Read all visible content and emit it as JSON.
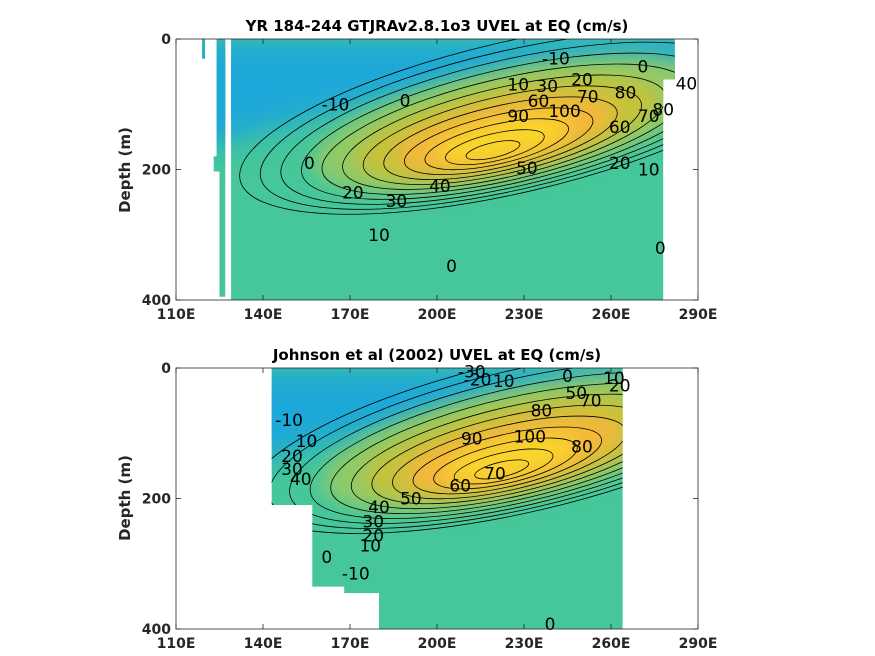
{
  "figure_colors": {
    "axes": "#262626",
    "contour": "#000000",
    "background": "#ffffff"
  },
  "colormap": [
    "#3a8ee0",
    "#1aa8d8",
    "#1fbfb0",
    "#45c79a",
    "#8fca68",
    "#c5c23a",
    "#f4b83a",
    "#f9d52c",
    "#f9f51a"
  ],
  "clim": [
    -40,
    110
  ],
  "chart_data": [
    {
      "type": "heatmap",
      "subtype": "filled contour",
      "title": "YR 184-244 GTJRAv2.8.1o3 UVEL at EQ (cm/s)",
      "ylabel": "Depth (m)",
      "xlabel": "",
      "xlim": [
        110,
        290
      ],
      "ylim": [
        400,
        0
      ],
      "x_ticks": [
        "110E",
        "140E",
        "170E",
        "200E",
        "230E",
        "260E",
        "290E"
      ],
      "y_ticks": [
        "0",
        "200",
        "400"
      ],
      "undercurrent_core": {
        "longitude": 225,
        "depth": 130,
        "max_speed": 100
      },
      "contour_labels": [
        {
          "text": "-10",
          "lon": 241,
          "depth": 30
        },
        {
          "text": "0",
          "lon": 271,
          "depth": 42
        },
        {
          "text": "10",
          "lon": 228,
          "depth": 70
        },
        {
          "text": "30",
          "lon": 238,
          "depth": 72
        },
        {
          "text": "20",
          "lon": 250,
          "depth": 62
        },
        {
          "text": "40",
          "lon": 286,
          "depth": 68
        },
        {
          "text": "60",
          "lon": 235,
          "depth": 95
        },
        {
          "text": "70",
          "lon": 252,
          "depth": 88
        },
        {
          "text": "80",
          "lon": 265,
          "depth": 82
        },
        {
          "text": "90",
          "lon": 228,
          "depth": 118
        },
        {
          "text": "100",
          "lon": 244,
          "depth": 110
        },
        {
          "text": "80",
          "lon": 278,
          "depth": 108
        },
        {
          "text": "70",
          "lon": 273,
          "depth": 118
        },
        {
          "text": "60",
          "lon": 263,
          "depth": 135
        },
        {
          "text": "30",
          "lon": 300,
          "depth": 88
        },
        {
          "text": "-10",
          "lon": 165,
          "depth": 100
        },
        {
          "text": "0",
          "lon": 189,
          "depth": 94
        },
        {
          "text": "0",
          "lon": 156,
          "depth": 190
        },
        {
          "text": "50",
          "lon": 231,
          "depth": 198
        },
        {
          "text": "40",
          "lon": 201,
          "depth": 225
        },
        {
          "text": "30",
          "lon": 186,
          "depth": 248
        },
        {
          "text": "20",
          "lon": 171,
          "depth": 235
        },
        {
          "text": "20",
          "lon": 263,
          "depth": 190
        },
        {
          "text": "10",
          "lon": 273,
          "depth": 200
        },
        {
          "text": "10",
          "lon": 180,
          "depth": 300
        },
        {
          "text": "0",
          "lon": 205,
          "depth": 348
        },
        {
          "text": "0",
          "lon": 277,
          "depth": 320
        }
      ]
    },
    {
      "type": "heatmap",
      "subtype": "filled contour",
      "title": "Johnson et al (2002) UVEL at EQ (cm/s)",
      "ylabel": "Depth (m)",
      "xlabel": "",
      "xlim": [
        110,
        290
      ],
      "ylim": [
        400,
        0
      ],
      "x_ticks": [
        "110E",
        "140E",
        "170E",
        "200E",
        "230E",
        "260E",
        "290E"
      ],
      "y_ticks": [
        "0",
        "200",
        "400"
      ],
      "undercurrent_core": {
        "longitude": 228,
        "depth": 115,
        "max_speed": 100
      },
      "contour_labels": [
        {
          "text": "-30",
          "lon": 212,
          "depth": 5
        },
        {
          "text": "-20",
          "lon": 214,
          "depth": 18
        },
        {
          "text": "10",
          "lon": 223,
          "depth": 20
        },
        {
          "text": "0",
          "lon": 245,
          "depth": 12
        },
        {
          "text": "10",
          "lon": 261,
          "depth": 15
        },
        {
          "text": "20",
          "lon": 263,
          "depth": 27
        },
        {
          "text": "50",
          "lon": 248,
          "depth": 38
        },
        {
          "text": "70",
          "lon": 253,
          "depth": 50
        },
        {
          "text": "80",
          "lon": 236,
          "depth": 65
        },
        {
          "text": "90",
          "lon": 212,
          "depth": 108
        },
        {
          "text": "100",
          "lon": 232,
          "depth": 105
        },
        {
          "text": "80",
          "lon": 250,
          "depth": 120
        },
        {
          "text": "-10",
          "lon": 149,
          "depth": 80
        },
        {
          "text": "10",
          "lon": 155,
          "depth": 112
        },
        {
          "text": "20",
          "lon": 150,
          "depth": 135
        },
        {
          "text": "30",
          "lon": 150,
          "depth": 155
        },
        {
          "text": "40",
          "lon": 153,
          "depth": 170
        },
        {
          "text": "50",
          "lon": 191,
          "depth": 200
        },
        {
          "text": "60",
          "lon": 208,
          "depth": 180
        },
        {
          "text": "70",
          "lon": 220,
          "depth": 162
        },
        {
          "text": "40",
          "lon": 180,
          "depth": 213
        },
        {
          "text": "30",
          "lon": 178,
          "depth": 235
        },
        {
          "text": "20",
          "lon": 178,
          "depth": 257
        },
        {
          "text": "10",
          "lon": 177,
          "depth": 272
        },
        {
          "text": "0",
          "lon": 162,
          "depth": 290
        },
        {
          "text": "-10",
          "lon": 172,
          "depth": 315
        },
        {
          "text": "0",
          "lon": 239,
          "depth": 392
        }
      ]
    }
  ]
}
